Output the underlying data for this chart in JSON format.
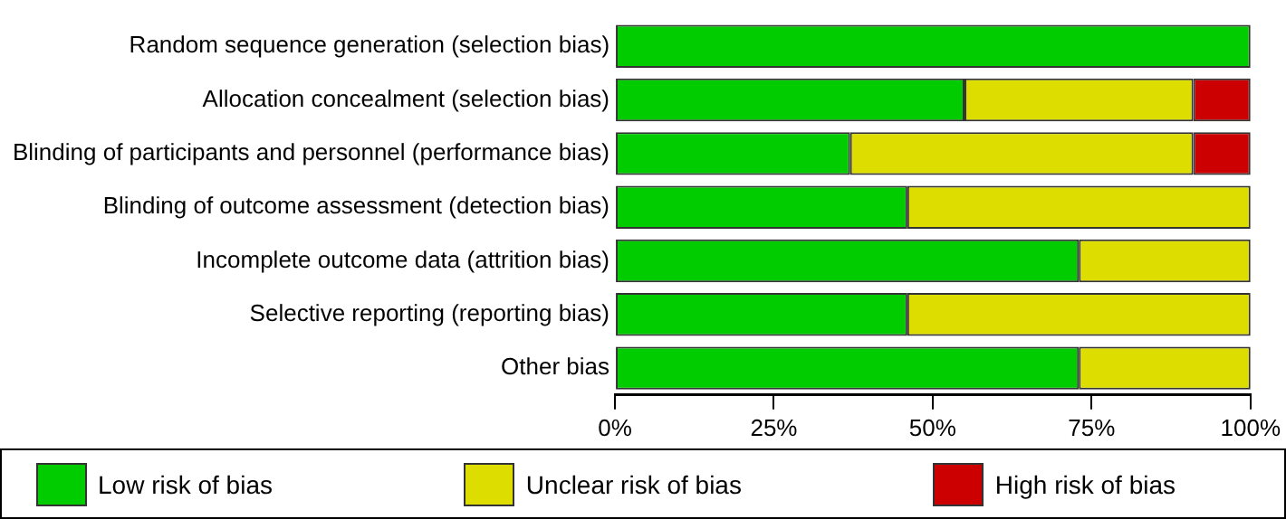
{
  "chart_data": {
    "type": "bar",
    "orientation": "horizontal",
    "stacked": true,
    "categories": [
      "Random sequence generation (selection bias)",
      "Allocation concealment (selection bias)",
      "Blinding of participants and personnel (performance bias)",
      "Blinding of outcome assessment (detection bias)",
      "Incomplete outcome data (attrition bias)",
      "Selective reporting (reporting bias)",
      "Other bias"
    ],
    "series": [
      {
        "name": "Low risk of bias",
        "color": "#00cc00",
        "values": [
          100,
          55,
          37,
          46,
          73,
          46,
          73
        ]
      },
      {
        "name": "Unclear risk of bias",
        "color": "#dddd00",
        "values": [
          0,
          36,
          54,
          54,
          27,
          54,
          27
        ]
      },
      {
        "name": "High risk of bias",
        "color": "#cc0000",
        "values": [
          0,
          9,
          9,
          0,
          0,
          0,
          0
        ]
      }
    ],
    "xlim": [
      0,
      100
    ],
    "xticks": [
      {
        "value": 0,
        "label": "0%"
      },
      {
        "value": 25,
        "label": "25%"
      },
      {
        "value": 50,
        "label": "50%"
      },
      {
        "value": 75,
        "label": "75%"
      },
      {
        "value": 100,
        "label": "100%"
      }
    ],
    "grid": false,
    "legend": "bottom"
  }
}
